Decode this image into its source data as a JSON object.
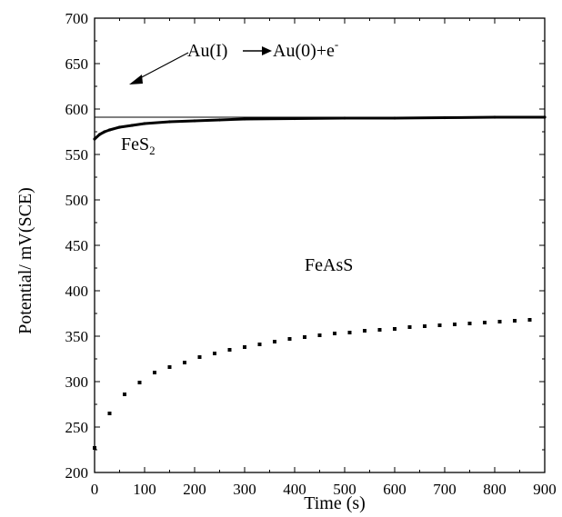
{
  "chart_data": {
    "type": "scatter",
    "title": "",
    "xlabel": "Time (s)",
    "ylabel": "Potential/ mV(SCE)",
    "xlim": [
      0,
      900
    ],
    "ylim": [
      200,
      700
    ],
    "xticks": [
      "0",
      "100",
      "200",
      "300",
      "400",
      "500",
      "600",
      "700",
      "800",
      "900"
    ],
    "yticks": [
      "200",
      "250",
      "300",
      "350",
      "400",
      "450",
      "500",
      "550",
      "600",
      "650",
      "700"
    ],
    "grid": false,
    "legend": "none",
    "series": [
      {
        "name": "FeS",
        "name_subscript": "2",
        "style": "dense-line",
        "x": [
          0,
          10,
          20,
          30,
          50,
          75,
          100,
          150,
          200,
          250,
          300,
          400,
          500,
          600,
          700,
          800,
          900
        ],
        "y": [
          567,
          572,
          575,
          577,
          580,
          582,
          584,
          586,
          587,
          588,
          589,
          589.5,
          590,
          590,
          590.5,
          591,
          591
        ]
      },
      {
        "name": "FeAsS",
        "style": "sparse-points",
        "x": [
          0,
          30,
          60,
          90,
          120,
          150,
          180,
          210,
          240,
          270,
          300,
          330,
          360,
          390,
          420,
          450,
          480,
          510,
          540,
          570,
          600,
          630,
          660,
          690,
          720,
          750,
          780,
          810,
          840,
          870
        ],
        "y": [
          227,
          265,
          286,
          299,
          310,
          316,
          321,
          327,
          331,
          335,
          338,
          341,
          344,
          347,
          349,
          351,
          353,
          354,
          356,
          357,
          358,
          360,
          361,
          362,
          363,
          364,
          365,
          366,
          367,
          368
        ]
      }
    ],
    "reference_line": {
      "y": 591
    },
    "annotations": [
      {
        "id": "reaction",
        "parts": [
          "Au(I)",
          "Au(0)+e",
          "-"
        ]
      }
    ]
  }
}
